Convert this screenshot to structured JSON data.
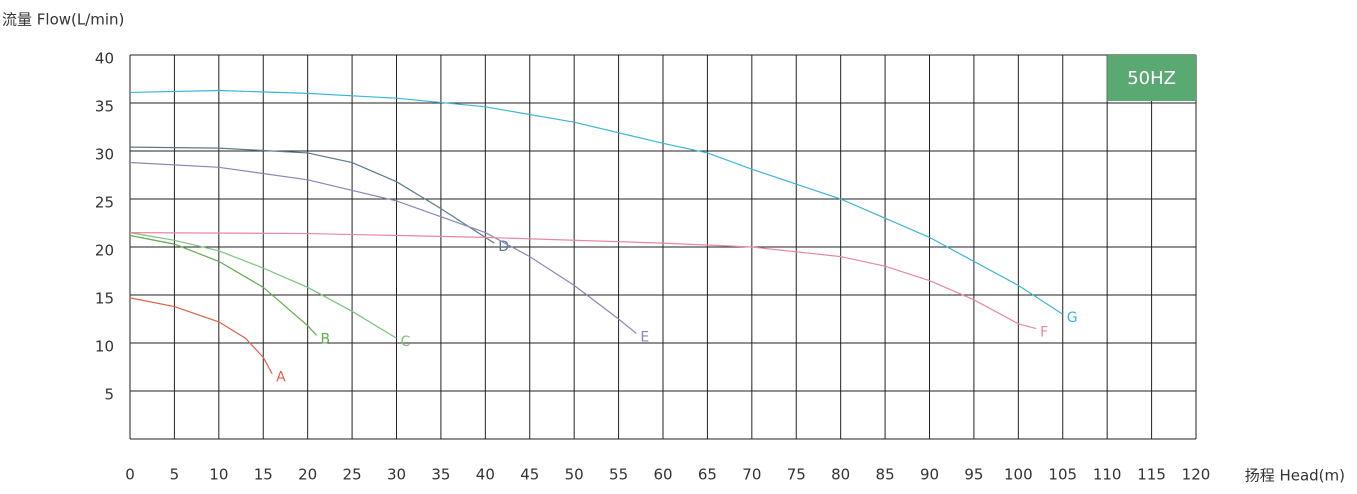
{
  "chart_data": {
    "type": "line",
    "title": "流量 Flow(L/min)",
    "x_label": "扬程 Head(m)",
    "badge": "50HZ",
    "badge_color": "#5aa872",
    "xlim": [
      0,
      120
    ],
    "ylim": [
      0,
      40
    ],
    "xticks": [
      0,
      5,
      10,
      15,
      20,
      25,
      30,
      35,
      40,
      45,
      50,
      55,
      60,
      65,
      70,
      75,
      80,
      85,
      90,
      95,
      100,
      105,
      110,
      115,
      120
    ],
    "yticks": [
      5,
      10,
      15,
      20,
      25,
      30,
      35,
      40
    ],
    "grid": true,
    "series": [
      {
        "name": "A",
        "color": "#e0604a",
        "x": [
          0,
          5,
          10,
          13,
          15,
          16
        ],
        "values": [
          14.7,
          13.8,
          12.2,
          10.5,
          8.5,
          6.8
        ]
      },
      {
        "name": "B",
        "color": "#62ab4e",
        "x": [
          0,
          5,
          10,
          15,
          20,
          21
        ],
        "values": [
          21.2,
          20.3,
          18.5,
          15.8,
          11.8,
          10.8
        ]
      },
      {
        "name": "C",
        "color": "#7cc280",
        "x": [
          0,
          5,
          10,
          15,
          20,
          25,
          30
        ],
        "values": [
          21.5,
          20.7,
          19.6,
          17.8,
          15.8,
          13.3,
          10.5
        ]
      },
      {
        "name": "D",
        "color": "#5a7a88",
        "x": [
          0,
          10,
          20,
          25,
          30,
          35,
          40,
          41
        ],
        "values": [
          30.4,
          30.3,
          29.8,
          28.8,
          26.8,
          24.0,
          21.0,
          20.4
        ]
      },
      {
        "name": "E",
        "color": "#8a86ba",
        "x": [
          0,
          10,
          20,
          30,
          40,
          45,
          50,
          55,
          57
        ],
        "values": [
          28.8,
          28.3,
          27.0,
          24.8,
          21.5,
          19.0,
          16.0,
          12.5,
          11.0
        ]
      },
      {
        "name": "F",
        "color": "#e8899e",
        "x": [
          0,
          20,
          40,
          60,
          70,
          80,
          85,
          90,
          95,
          100,
          102
        ],
        "values": [
          21.5,
          21.4,
          21.0,
          20.4,
          20.0,
          19.0,
          18.0,
          16.5,
          14.5,
          12.0,
          11.5
        ]
      },
      {
        "name": "G",
        "color": "#3bb6d8",
        "x": [
          0,
          10,
          20,
          30,
          40,
          50,
          60,
          65,
          70,
          80,
          90,
          100,
          105
        ],
        "values": [
          36.1,
          36.3,
          36.0,
          35.5,
          34.6,
          33.0,
          30.8,
          29.8,
          28.1,
          25.0,
          21.0,
          16.0,
          13.0
        ]
      }
    ]
  }
}
